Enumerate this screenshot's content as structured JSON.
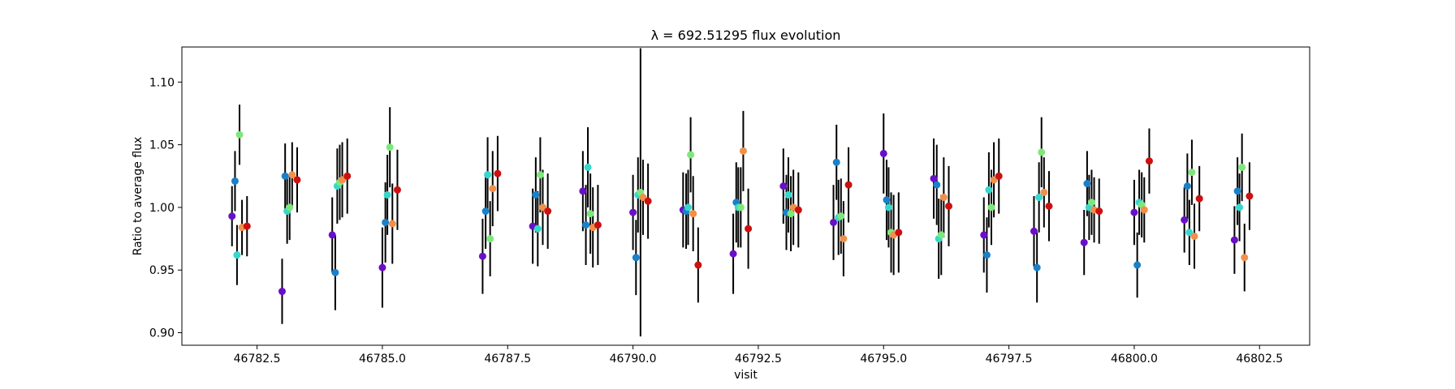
{
  "chart_data": {
    "type": "scatter",
    "title": "λ = 692.51295 flux evolution",
    "xlabel": "visit",
    "ylabel": "Ratio to average flux",
    "xlim": [
      46781.0,
      46803.5
    ],
    "ylim": [
      0.89,
      1.128
    ],
    "xticks": [
      46782.5,
      46785.0,
      46787.5,
      46790.0,
      46792.5,
      46795.0,
      46797.5,
      46800.0,
      46802.5
    ],
    "xtick_labels": [
      "46782.5",
      "46785.0",
      "46787.5",
      "46790.0",
      "46792.5",
      "46795.0",
      "46797.5",
      "46800.0",
      "46802.5"
    ],
    "yticks": [
      0.9,
      0.95,
      1.0,
      1.05,
      1.1
    ],
    "ytick_labels": [
      "0.90",
      "0.95",
      "1.00",
      "1.05",
      "1.10"
    ],
    "grid": false,
    "legend": "none",
    "series_colors": [
      "#6a0fc8",
      "#1a80c8",
      "#36d7cc",
      "#7de87a",
      "#f0904a",
      "#cc1010"
    ],
    "visits": [
      46782,
      46783,
      46784,
      46785,
      46787,
      46788,
      46789,
      46790,
      46791,
      46792,
      46793,
      46794,
      46795,
      46796,
      46797,
      46798,
      46799,
      46800,
      46801,
      46802
    ],
    "x_offsets": [
      0.0,
      0.06,
      0.1,
      0.15,
      0.2,
      0.3
    ],
    "y_values": [
      [
        0.993,
        1.021,
        0.962,
        1.058,
        0.984,
        0.985
      ],
      [
        0.933,
        1.025,
        0.997,
        1.0,
        1.026,
        1.022
      ],
      [
        0.978,
        0.948,
        1.017,
        1.02,
        1.022,
        1.025
      ],
      [
        0.952,
        0.988,
        1.01,
        1.048,
        0.987,
        1.014
      ],
      [
        0.961,
        0.997,
        1.026,
        0.975,
        1.015,
        1.027
      ],
      [
        0.985,
        1.01,
        0.983,
        1.026,
        1.0,
        0.997
      ],
      [
        1.013,
        0.986,
        1.032,
        0.995,
        0.984,
        0.986
      ],
      [
        0.996,
        0.96,
        1.01,
        1.012,
        1.008,
        1.005
      ],
      [
        0.998,
        0.997,
        1.0,
        1.042,
        0.995,
        0.954
      ],
      [
        0.963,
        1.004,
        1.0,
        1.0,
        1.045,
        0.983
      ],
      [
        1.017,
        0.996,
        1.01,
        0.995,
        1.0,
        0.998
      ],
      [
        0.988,
        1.036,
        0.992,
        0.993,
        0.975,
        1.018
      ],
      [
        1.043,
        1.006,
        1.0,
        0.98,
        0.978,
        0.98
      ],
      [
        1.023,
        1.018,
        0.975,
        0.978,
        1.008,
        1.001
      ],
      [
        0.978,
        0.962,
        1.014,
        1.0,
        1.022,
        1.025
      ],
      [
        0.981,
        0.952,
        1.008,
        1.044,
        1.012,
        1.001
      ],
      [
        0.972,
        1.019,
        1.0,
        1.004,
        0.998,
        0.997
      ],
      [
        0.996,
        0.954,
        1.004,
        1.002,
        0.998,
        1.037
      ],
      [
        0.99,
        1.017,
        0.98,
        1.028,
        0.977,
        1.007
      ],
      [
        0.974,
        1.013,
        1.0,
        1.032,
        0.96,
        1.009
      ]
    ],
    "y_errors": [
      [
        0.024,
        0.024,
        0.024,
        0.024,
        0.022,
        0.024
      ],
      [
        0.026,
        0.026,
        0.026,
        0.026,
        0.026,
        0.026
      ],
      [
        0.03,
        0.03,
        0.03,
        0.03,
        0.03,
        0.03
      ],
      [
        0.032,
        0.032,
        0.032,
        0.032,
        0.032,
        0.032
      ],
      [
        0.03,
        0.03,
        0.03,
        0.03,
        0.03,
        0.03
      ],
      [
        0.03,
        0.03,
        0.03,
        0.03,
        0.03,
        0.03
      ],
      [
        0.032,
        0.032,
        0.032,
        0.032,
        0.032,
        0.032
      ],
      [
        0.03,
        0.03,
        0.03,
        0.115,
        0.03,
        0.03
      ],
      [
        0.03,
        0.03,
        0.03,
        0.03,
        0.03,
        0.03
      ],
      [
        0.032,
        0.032,
        0.032,
        0.032,
        0.032,
        0.032
      ],
      [
        0.03,
        0.03,
        0.03,
        0.03,
        0.03,
        0.03
      ],
      [
        0.03,
        0.03,
        0.03,
        0.03,
        0.03,
        0.03
      ],
      [
        0.032,
        0.032,
        0.032,
        0.032,
        0.032,
        0.032
      ],
      [
        0.032,
        0.032,
        0.032,
        0.032,
        0.032,
        0.032
      ],
      [
        0.03,
        0.03,
        0.03,
        0.03,
        0.03,
        0.03
      ],
      [
        0.028,
        0.028,
        0.028,
        0.028,
        0.028,
        0.028
      ],
      [
        0.026,
        0.026,
        0.026,
        0.026,
        0.026,
        0.026
      ],
      [
        0.026,
        0.026,
        0.026,
        0.026,
        0.026,
        0.026
      ],
      [
        0.026,
        0.026,
        0.026,
        0.026,
        0.026,
        0.026
      ],
      [
        0.027,
        0.027,
        0.027,
        0.027,
        0.027,
        0.027
      ]
    ]
  }
}
